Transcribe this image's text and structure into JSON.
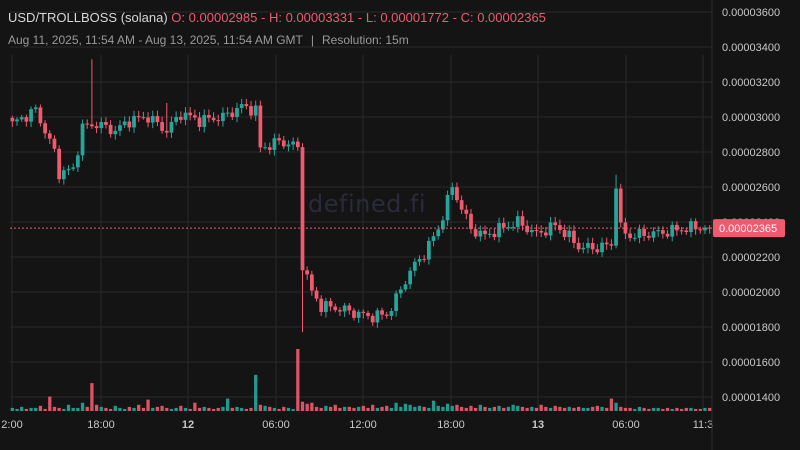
{
  "header": {
    "pair": "USD/TROLLBOSS (solana)",
    "o_label": "O:",
    "o_value": "0.00002985",
    "h_label": "H:",
    "h_value": "0.00003331",
    "l_label": "L:",
    "l_value": "0.00001772",
    "c_label": "C:",
    "c_value": "0.00002365",
    "range": "Aug 11, 2025, 11:54 AM - Aug 13, 2025, 11:54 AM GMT",
    "separator": "|",
    "resolution": "Resolution: 15m"
  },
  "watermark": "defined.fi",
  "colors": {
    "up": "#26a69a",
    "down": "#ef5a6f",
    "background": "#141414",
    "grid": "#2a2a2a",
    "price_tag": "#ef5a6f"
  },
  "chart_data": {
    "type": "candlestick",
    "x_tick_labels": [
      "2:00",
      "18:00",
      "12",
      "06:00",
      "12:00",
      "18:00",
      "13",
      "06:00",
      "11:3"
    ],
    "y_ticks": [
      "0.00003600",
      "0.00003400",
      "0.00003200",
      "0.00003000",
      "0.00002800",
      "0.00002600",
      "0.00002400",
      "0.00002200",
      "0.00002000",
      "0.00001800",
      "0.00001600",
      "0.00001400"
    ],
    "y_tick_values": [
      3.6,
      3.4,
      3.2,
      3.0,
      2.8,
      2.6,
      2.4,
      2.2,
      2.0,
      1.8,
      1.6,
      1.4
    ],
    "y_unit_note": "prices in units of 1e-5 USD",
    "ylim": [
      1.31,
      3.62
    ],
    "last_price": 2.365,
    "last_price_label": "0.00002365",
    "grid": true,
    "anchors": [
      [
        0,
        2.96
      ],
      [
        5,
        3.04
      ],
      [
        7,
        2.92
      ],
      [
        9,
        2.8
      ],
      [
        10,
        2.68
      ],
      [
        13,
        2.7
      ],
      [
        15,
        2.94
      ],
      [
        18,
        2.96
      ],
      [
        22,
        2.92
      ],
      [
        25,
        2.98
      ],
      [
        29,
        3.0
      ],
      [
        33,
        2.92
      ],
      [
        36,
        3.02
      ],
      [
        40,
        2.98
      ],
      [
        45,
        3.0
      ],
      [
        49,
        3.06
      ],
      [
        52,
        3.04
      ],
      [
        53,
        2.82
      ],
      [
        57,
        2.86
      ],
      [
        60,
        2.84
      ],
      [
        61,
        2.82
      ],
      [
        62,
        2.16
      ],
      [
        64,
        2.0
      ],
      [
        66,
        1.92
      ],
      [
        69,
        1.91
      ],
      [
        72,
        1.89
      ],
      [
        76,
        1.86
      ],
      [
        80,
        1.87
      ],
      [
        82,
        1.96
      ],
      [
        85,
        2.12
      ],
      [
        88,
        2.22
      ],
      [
        91,
        2.36
      ],
      [
        94,
        2.6
      ],
      [
        96,
        2.48
      ],
      [
        98,
        2.36
      ],
      [
        101,
        2.32
      ],
      [
        104,
        2.36
      ],
      [
        108,
        2.4
      ],
      [
        112,
        2.33
      ],
      [
        116,
        2.38
      ],
      [
        118,
        2.34
      ],
      [
        121,
        2.26
      ],
      [
        124,
        2.25
      ],
      [
        128,
        2.27
      ],
      [
        129,
        2.62
      ],
      [
        130,
        2.36
      ],
      [
        132,
        2.32
      ],
      [
        135,
        2.33
      ],
      [
        139,
        2.34
      ],
      [
        143,
        2.36
      ],
      [
        146,
        2.37
      ],
      [
        149,
        2.365
      ]
    ],
    "spikes": [
      {
        "candle": 17,
        "high": 3.33
      },
      {
        "candle": 33,
        "high": 3.08
      },
      {
        "candle": 62,
        "low": 1.77
      },
      {
        "candle": 129,
        "high": 2.67
      }
    ],
    "volume": {
      "values": [
        3,
        2,
        4,
        2,
        3,
        3,
        5,
        2,
        14,
        4,
        3,
        2,
        6,
        3,
        3,
        8,
        4,
        27,
        6,
        4,
        3,
        2,
        5,
        3,
        2,
        4,
        3,
        6,
        3,
        11,
        3,
        4,
        5,
        3,
        2,
        3,
        5,
        3,
        2,
        8,
        3,
        4,
        3,
        2,
        3,
        4,
        12,
        3,
        4,
        3,
        2,
        3,
        35,
        6,
        5,
        4,
        3,
        2,
        4,
        3,
        2,
        60,
        9,
        7,
        8,
        4,
        3,
        5,
        4,
        6,
        3,
        4,
        4,
        3,
        4,
        5,
        3,
        6,
        3,
        4,
        5,
        3,
        8,
        4,
        7,
        6,
        4,
        5,
        4,
        3,
        10,
        5,
        4,
        7,
        5,
        6,
        4,
        3,
        5,
        3,
        6,
        4,
        3,
        4,
        5,
        3,
        4,
        6,
        5,
        4,
        3,
        4,
        3,
        6,
        4,
        3,
        5,
        4,
        3,
        4,
        3,
        4,
        3,
        3,
        4,
        5,
        4,
        3,
        12,
        8,
        4,
        3,
        3,
        2,
        4,
        3,
        2,
        3,
        3,
        2,
        3,
        2,
        3,
        2,
        3,
        3,
        2,
        2,
        3,
        3
      ]
    }
  }
}
